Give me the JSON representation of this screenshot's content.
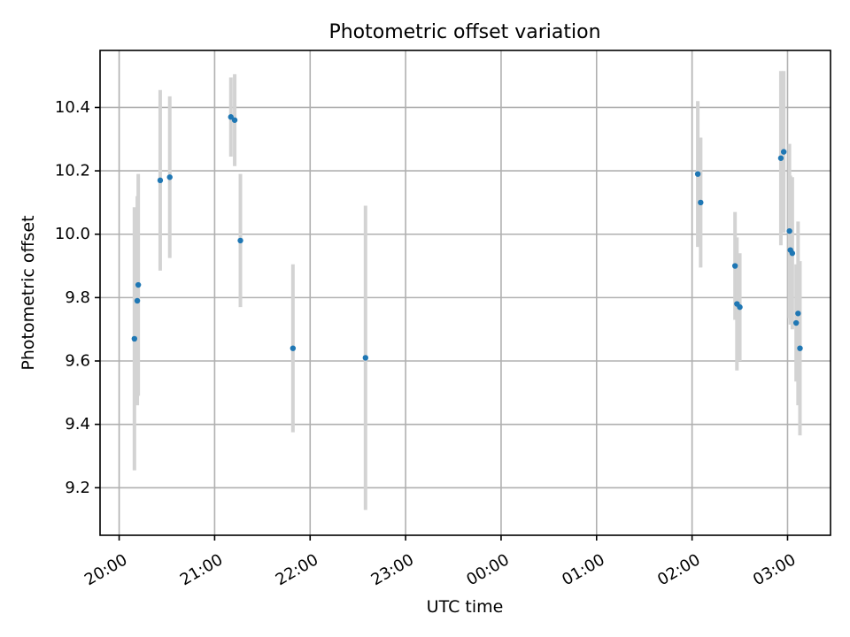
{
  "chart_data": {
    "type": "scatter",
    "title": "Photometric offset variation",
    "xlabel": "UTC time",
    "ylabel": "Photometric offset",
    "x_unit": "hours since 20:00 UTC",
    "xlim": [
      -0.2,
      7.45
    ],
    "ylim": [
      9.05,
      10.58
    ],
    "grid": true,
    "x_ticks": [
      {
        "value": 0,
        "label": "20:00"
      },
      {
        "value": 1,
        "label": "21:00"
      },
      {
        "value": 2,
        "label": "22:00"
      },
      {
        "value": 3,
        "label": "23:00"
      },
      {
        "value": 4,
        "label": "00:00"
      },
      {
        "value": 5,
        "label": "01:00"
      },
      {
        "value": 6,
        "label": "02:00"
      },
      {
        "value": 7,
        "label": "03:00"
      }
    ],
    "y_ticks": [
      {
        "value": 9.2,
        "label": "9.2"
      },
      {
        "value": 9.4,
        "label": "9.4"
      },
      {
        "value": 9.6,
        "label": "9.6"
      },
      {
        "value": 9.8,
        "label": "9.8"
      },
      {
        "value": 10.0,
        "label": "10.0"
      },
      {
        "value": 10.2,
        "label": "10.2"
      },
      {
        "value": 10.4,
        "label": "10.4"
      }
    ],
    "colors": {
      "points": "#1f77b4",
      "error_bars": "#d3d3d3",
      "grid": "#b0b0b0"
    },
    "points": [
      {
        "x": 0.16,
        "y": 9.67,
        "err": 0.415
      },
      {
        "x": 0.19,
        "y": 9.79,
        "err": 0.33
      },
      {
        "x": 0.2,
        "y": 9.84,
        "err": 0.35
      },
      {
        "x": 0.43,
        "y": 10.17,
        "err": 0.285
      },
      {
        "x": 0.53,
        "y": 10.18,
        "err": 0.255
      },
      {
        "x": 1.17,
        "y": 10.37,
        "err": 0.125
      },
      {
        "x": 1.21,
        "y": 10.36,
        "err": 0.145
      },
      {
        "x": 1.27,
        "y": 9.98,
        "err": 0.21
      },
      {
        "x": 1.82,
        "y": 9.64,
        "err": 0.265
      },
      {
        "x": 2.58,
        "y": 9.61,
        "err": 0.48
      },
      {
        "x": 6.06,
        "y": 10.19,
        "err": 0.23
      },
      {
        "x": 6.09,
        "y": 10.1,
        "err": 0.205
      },
      {
        "x": 6.45,
        "y": 9.9,
        "err": 0.17
      },
      {
        "x": 6.47,
        "y": 9.78,
        "err": 0.21
      },
      {
        "x": 6.5,
        "y": 9.77,
        "err": 0.17
      },
      {
        "x": 6.93,
        "y": 10.24,
        "err": 0.275
      },
      {
        "x": 6.96,
        "y": 10.26,
        "err": 0.255
      },
      {
        "x": 7.02,
        "y": 10.01,
        "err": 0.275
      },
      {
        "x": 7.03,
        "y": 9.95,
        "err": 0.235
      },
      {
        "x": 7.05,
        "y": 9.94,
        "err": 0.24
      },
      {
        "x": 7.09,
        "y": 9.72,
        "err": 0.185
      },
      {
        "x": 7.11,
        "y": 9.75,
        "err": 0.29
      },
      {
        "x": 7.13,
        "y": 9.64,
        "err": 0.275
      }
    ]
  }
}
